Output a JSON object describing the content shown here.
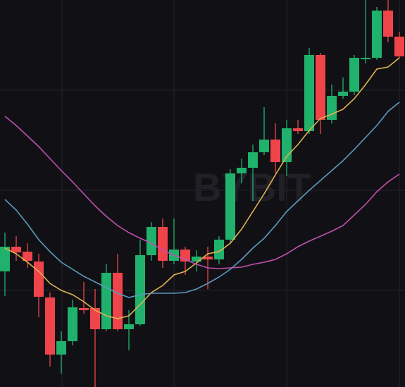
{
  "chart_data": {
    "type": "candlestick",
    "watermark": "BYBIT",
    "ylim": [
      0,
      549
    ],
    "up_color": "#20b26c",
    "down_color": "#ef454a",
    "open": [
      164,
      199,
      192,
      178,
      127,
      46,
      65,
      112,
      112,
      82,
      162,
      82,
      89,
      187,
      227,
      179,
      195,
      178,
      185,
      181,
      209,
      303,
      311,
      333,
      351,
      319,
      367,
      363,
      471,
      379,
      413,
      419,
      465,
      467,
      534,
      497
    ],
    "high": [
      219,
      214,
      204,
      189,
      134,
      79,
      124,
      149,
      139,
      174,
      189,
      109,
      209,
      234,
      239,
      239,
      199,
      194,
      199,
      214,
      309,
      324,
      344,
      397,
      374,
      379,
      379,
      481,
      474,
      429,
      439,
      471,
      549,
      539,
      549,
      504
    ],
    "low": [
      129,
      179,
      169,
      99,
      29,
      19,
      59,
      104,
      0,
      79,
      79,
      52,
      87,
      179,
      169,
      174,
      159,
      164,
      139,
      174,
      204,
      289,
      264,
      329,
      304,
      299,
      359,
      359,
      359,
      374,
      409,
      414,
      459,
      464,
      489,
      467
    ],
    "close": [
      199,
      191,
      179,
      128,
      46,
      65,
      113,
      109,
      82,
      162,
      82,
      89,
      187,
      227,
      179,
      195,
      178,
      185,
      181,
      209,
      303,
      311,
      333,
      351,
      319,
      367,
      363,
      471,
      379,
      413,
      419,
      467,
      467,
      534,
      497,
      469
    ],
    "lines": [
      {
        "color": "#e0b24e",
        "values": [
          197,
          189,
          177,
          164,
          147,
          137,
          131,
          121,
          109,
          101,
          97,
          101,
          117,
          134,
          144,
          159,
          164,
          176,
          189,
          192,
          204,
          224,
          249,
          274,
          301,
          327,
          344,
          364,
          381,
          387,
          394,
          409,
          429,
          451,
          454,
          467
        ]
      },
      {
        "color": "#5b9ac0",
        "values": [
          266,
          251,
          231,
          209,
          192,
          177,
          167,
          157,
          149,
          141,
          133,
          127,
          131,
          133,
          133,
          133,
          134,
          139,
          147,
          156,
          167,
          181,
          197,
          211,
          229,
          249,
          264,
          279,
          293,
          307,
          321,
          337,
          354,
          371,
          391,
          404
        ]
      },
      {
        "color": "#c04fb0",
        "values": [
          384,
          371,
          356,
          341,
          324,
          307,
          291,
          274,
          257,
          242,
          229,
          219,
          211,
          204,
          194,
          187,
          181,
          174,
          169,
          168,
          169,
          170,
          174,
          177,
          181,
          189,
          199,
          207,
          214,
          221,
          229,
          244,
          259,
          277,
          291,
          302
        ]
      }
    ]
  }
}
